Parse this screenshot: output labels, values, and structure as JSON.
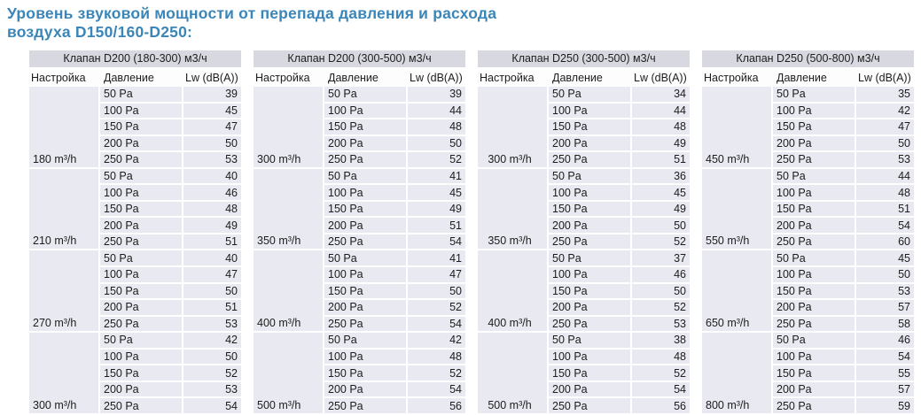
{
  "page": {
    "title_line1": "Уровень звуковой мощности от перепада давления и расхода",
    "title_line2": "воздуха D150/160-D250:"
  },
  "colors": {
    "title_text": "#3a86b8",
    "table_title_bg": "#d8d9e0",
    "row_bg": "#e9eaf1",
    "table_text": "#1c1c1c"
  },
  "table_columns": [
    "Настройка",
    "Давление",
    "Lw (dB(A))"
  ],
  "pressures": [
    "50 Pa",
    "100 Pa",
    "150 Pa",
    "200 Pa",
    "250 Pa"
  ],
  "tables": [
    {
      "title": "Клапан D200 (180-300) м3/ч",
      "setting_align": "left",
      "groups": [
        {
          "setting": "180 m³/h",
          "lw": [
            39,
            45,
            47,
            50,
            53
          ]
        },
        {
          "setting": "210 m³/h",
          "lw": [
            40,
            46,
            48,
            49,
            51
          ]
        },
        {
          "setting": "270 m³/h",
          "lw": [
            40,
            47,
            50,
            51,
            53
          ]
        },
        {
          "setting": "300 m³/h",
          "lw": [
            42,
            50,
            52,
            53,
            54
          ]
        }
      ]
    },
    {
      "title": "Клапан D200 (300-500) м3/ч",
      "setting_align": "left",
      "groups": [
        {
          "setting": "300 m³/h",
          "lw": [
            39,
            44,
            48,
            50,
            52
          ]
        },
        {
          "setting": "350 m³/h",
          "lw": [
            41,
            45,
            49,
            51,
            54
          ]
        },
        {
          "setting": "400 m³/h",
          "lw": [
            41,
            47,
            50,
            52,
            54
          ]
        },
        {
          "setting": "500 m³/h",
          "lw": [
            42,
            48,
            52,
            54,
            56
          ]
        }
      ]
    },
    {
      "title": "Клапан D250 (300-500) м3/ч",
      "setting_align": "center",
      "groups": [
        {
          "setting": "300 m³/h",
          "lw": [
            34,
            44,
            48,
            49,
            51
          ]
        },
        {
          "setting": "350 m³/h",
          "lw": [
            36,
            45,
            49,
            50,
            52
          ]
        },
        {
          "setting": "400 m³/h",
          "lw": [
            37,
            46,
            50,
            52,
            53
          ]
        },
        {
          "setting": "500 m³/h",
          "lw": [
            38,
            48,
            52,
            54,
            56
          ]
        }
      ]
    },
    {
      "title": "Клапан D250 (500-800) м3/ч",
      "setting_align": "left",
      "groups": [
        {
          "setting": "450 m³/h",
          "lw": [
            35,
            42,
            47,
            50,
            53
          ]
        },
        {
          "setting": "550 m³/h",
          "lw": [
            44,
            48,
            51,
            54,
            60
          ]
        },
        {
          "setting": "650 m³/h",
          "lw": [
            45,
            50,
            53,
            57,
            58
          ]
        },
        {
          "setting": "800 m³/h",
          "lw": [
            46,
            54,
            55,
            57,
            59
          ]
        }
      ]
    }
  ]
}
